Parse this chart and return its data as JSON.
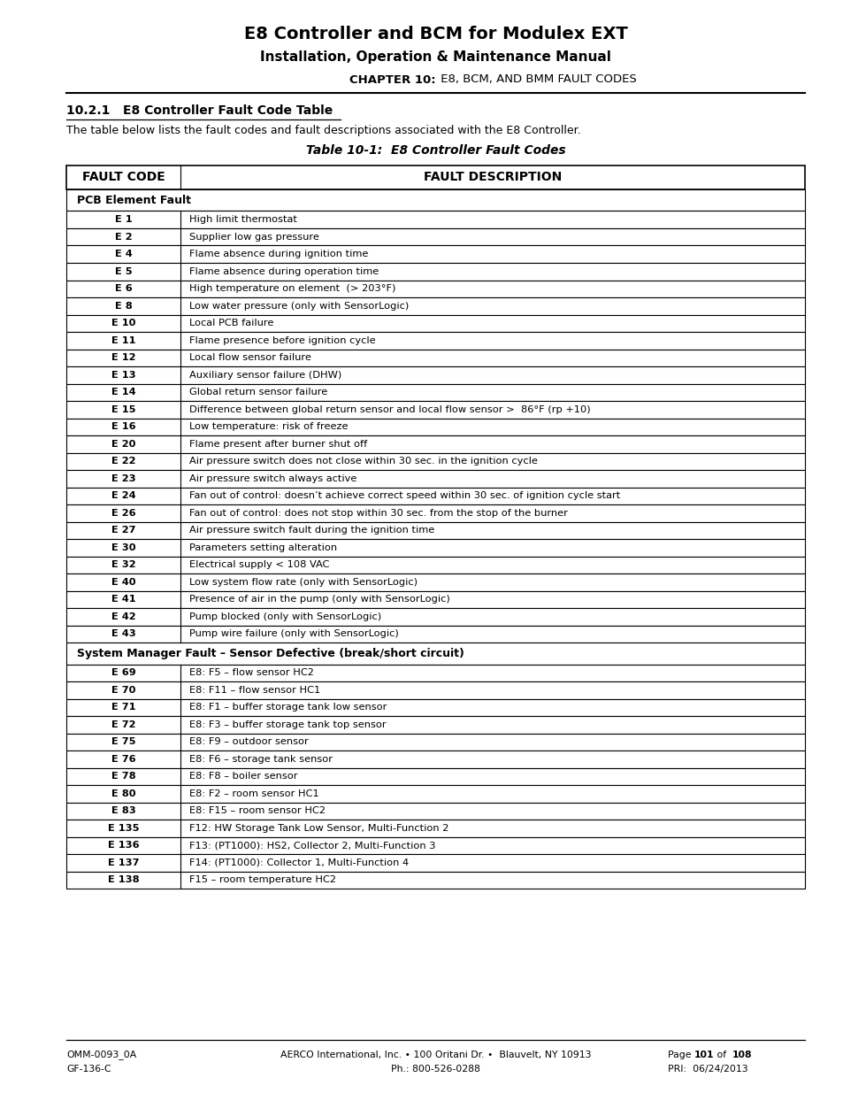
{
  "title1": "E8 Controller and BCM for Modulex EXT",
  "title2": "Installation, Operation & Maintenance Manual",
  "title3_bold": "CHAPTER 10:",
  "title3_rest": " E8, BCM, AND BMM FAULT CODES",
  "section": "10.2.1   E8 Controller Fault Code Table",
  "intro": "The table below lists the fault codes and fault descriptions associated with the E8 Controller.",
  "table_title": "Table 10-1:  E8 Controller Fault Codes",
  "col1_header": "FAULT CODE",
  "col2_header": "FAULT DESCRIPTION",
  "pcb_section": "PCB Element Fault",
  "sys_section": "System Manager Fault – Sensor Defective (break/short circuit)",
  "rows": [
    [
      "E 1",
      "High limit thermostat"
    ],
    [
      "E 2",
      "Supplier low gas pressure"
    ],
    [
      "E 4",
      "Flame absence during ignition time"
    ],
    [
      "E 5",
      "Flame absence during operation time"
    ],
    [
      "E 6",
      "High temperature on element  (> 203°F)"
    ],
    [
      "E 8",
      "Low water pressure (only with SensorLogic)"
    ],
    [
      "E 10",
      "Local PCB failure"
    ],
    [
      "E 11",
      "Flame presence before ignition cycle"
    ],
    [
      "E 12",
      "Local flow sensor failure"
    ],
    [
      "E 13",
      "Auxiliary sensor failure (DHW)"
    ],
    [
      "E 14",
      "Global return sensor failure"
    ],
    [
      "E 15",
      "Difference between global return sensor and local flow sensor >  86°F (rp +10)"
    ],
    [
      "E 16",
      "Low temperature: risk of freeze"
    ],
    [
      "E 20",
      "Flame present after burner shut off"
    ],
    [
      "E 22",
      "Air pressure switch does not close within 30 sec. in the ignition cycle"
    ],
    [
      "E 23",
      "Air pressure switch always active"
    ],
    [
      "E 24",
      "Fan out of control: doesn’t achieve correct speed within 30 sec. of ignition cycle start"
    ],
    [
      "E 26",
      "Fan out of control: does not stop within 30 sec. from the stop of the burner"
    ],
    [
      "E 27",
      "Air pressure switch fault during the ignition time"
    ],
    [
      "E 30",
      "Parameters setting alteration"
    ],
    [
      "E 32",
      "Electrical supply < 108 VAC"
    ],
    [
      "E 40",
      "Low system flow rate (only with SensorLogic)"
    ],
    [
      "E 41",
      "Presence of air in the pump (only with SensorLogic)"
    ],
    [
      "E 42",
      "Pump blocked (only with SensorLogic)"
    ],
    [
      "E 43",
      "Pump wire failure (only with SensorLogic)"
    ]
  ],
  "sys_rows": [
    [
      "E 69",
      "E8: F5 – flow sensor HC2"
    ],
    [
      "E 70",
      "E8: F11 – flow sensor HC1"
    ],
    [
      "E 71",
      "E8: F1 – buffer storage tank low sensor"
    ],
    [
      "E 72",
      "E8: F3 – buffer storage tank top sensor"
    ],
    [
      "E 75",
      "E8: F9 – outdoor sensor"
    ],
    [
      "E 76",
      "E8: F6 – storage tank sensor"
    ],
    [
      "E 78",
      "E8: F8 – boiler sensor"
    ],
    [
      "E 80",
      "E8: F2 – room sensor HC1"
    ],
    [
      "E 83",
      "E8: F15 – room sensor HC2"
    ],
    [
      "E 135",
      "F12: HW Storage Tank Low Sensor, Multi-Function 2"
    ],
    [
      "E 136",
      "F13: (PT1000): HS2, Collector 2, Multi-Function 3"
    ],
    [
      "E 137",
      "F14: (PT1000): Collector 1, Multi-Function 4"
    ],
    [
      "E 138",
      "F15 – room temperature HC2"
    ]
  ],
  "footer_left1": "OMM-0093_0A",
  "footer_left2": "GF-136-C",
  "footer_center1": "AERCO International, Inc. • 100 Oritani Dr. •  Blauvelt, NY 10913",
  "footer_center2": "Ph.: 800-526-0288",
  "footer_right2": "PRI:  06/24/2013"
}
